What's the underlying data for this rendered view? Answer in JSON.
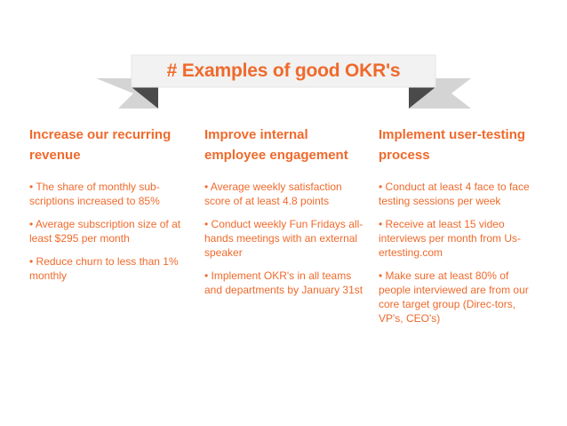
{
  "banner": {
    "title": "# Examples of good OKR's"
  },
  "colors": {
    "accent": "#ef6a2c",
    "ribbon_light": "#d6d6d6",
    "ribbon_dark": "#4a4a4a"
  },
  "columns": [
    {
      "heading": "Increase our recurring revenue",
      "bullets": [
        "• The share of monthly sub-scriptions increased to 85%",
        "• Average subscription size of at least $295 per month",
        "• Reduce churn to less than 1% monthly"
      ]
    },
    {
      "heading": "Improve internal employee engagement",
      "bullets": [
        "• Average weekly satisfaction score of at least 4.8 points",
        "• Conduct weekly Fun Fridays all-hands meetings with an external speaker",
        "• Implement OKR's in all teams and departments by January 31st"
      ]
    },
    {
      "heading": "Implement user-testing process",
      "bullets": [
        "• Conduct at least 4 face to face testing sessions per week",
        "• Receive at least 15 video interviews per month from Us-ertesting.com",
        "• Make sure at least 80% of people interviewed are from our core target group (Direc-tors, VP's, CEO's)"
      ]
    }
  ]
}
